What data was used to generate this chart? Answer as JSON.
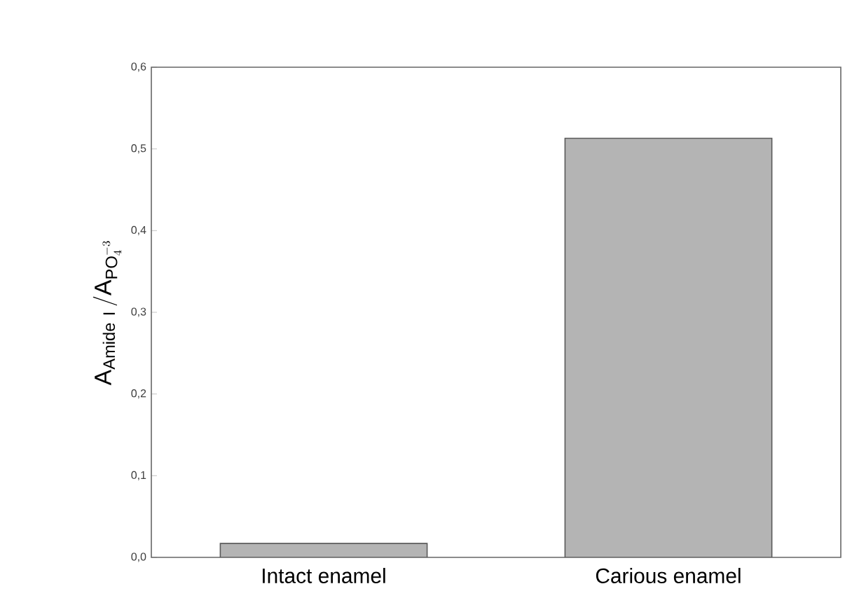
{
  "chart_data": {
    "type": "bar",
    "ylabel": "\\mathrm{A}_{\\mathrm{Amide\\ I}}\\,/\\mathrm{A}_{\\mathrm{PO}_{4}^{-3}}",
    "categories": [
      "Intact enamel",
      "Carious enamel"
    ],
    "values": [
      0.017,
      0.513
    ],
    "color": "#b4b4b4",
    "ylim": [
      0,
      0.6
    ],
    "yticks": [
      {
        "value": 0,
        "label": "0,0"
      },
      {
        "value": 0.1,
        "label": "0,1"
      },
      {
        "value": 0.2,
        "label": "0,2"
      },
      {
        "value": 0.3,
        "label": "0,3"
      },
      {
        "value": 0.4,
        "label": "0,4"
      },
      {
        "value": 0.5,
        "label": "0,5"
      },
      {
        "value": 0.6,
        "label": "0,6"
      }
    ],
    "grid": false
  }
}
